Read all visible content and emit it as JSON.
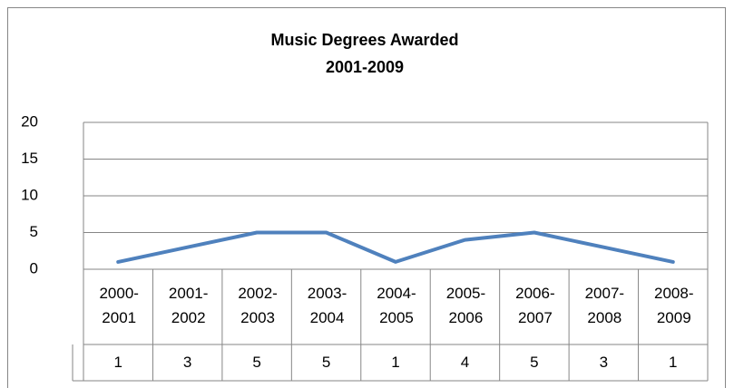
{
  "chart_data": {
    "type": "line",
    "title": "Music Degrees Awarded",
    "subtitle": "2001-2009",
    "categories": [
      "2000-2001",
      "2001-2002",
      "2002-2003",
      "2003-2004",
      "2004-2005",
      "2005-2006",
      "2006-2007",
      "2007-2008",
      "2008-2009"
    ],
    "values": [
      1,
      3,
      5,
      5,
      1,
      4,
      5,
      3,
      1
    ],
    "color": "#4f81bd",
    "ylim": [
      0,
      20
    ],
    "yticks": [
      0,
      5,
      10,
      15,
      20
    ],
    "grid": true
  }
}
